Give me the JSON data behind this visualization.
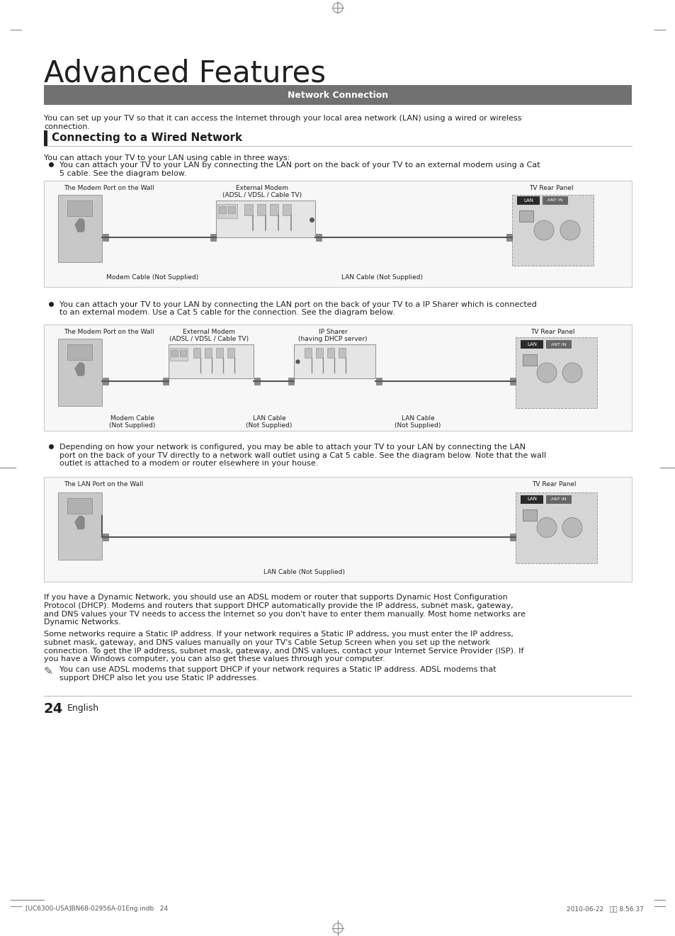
{
  "title": "Advanced Features",
  "section_header": "Network Connection",
  "section_header_bg": "#6b6b6b",
  "section_header_color": "#ffffff",
  "subsection_title": "Connecting to a Wired Network",
  "page_bg": "#ffffff",
  "text_color": "#231f20",
  "body_text_1": "You can set up your TV so that it can access the Internet through your local area network (LAN) using a wired or wireless\nconnection.",
  "bullet_intro": "You can attach your TV to your LAN using cable in three ways:",
  "bullet1_line1": "You can attach your TV to your LAN by connecting the LAN port on the back of your TV to an external modem using a Cat",
  "bullet1_line2": "5 cable. See the diagram below.",
  "bullet2_line1": "You can attach your TV to your LAN by connecting the LAN port on the back of your TV to a IP Sharer which is connected",
  "bullet2_line2": "to an external modem. Use a Cat 5 cable for the connection. See the diagram below.",
  "bullet3_line1": "Depending on how your network is configured, you may be able to attach your TV to your LAN by connecting the LAN",
  "bullet3_line2": "port on the back of your TV directly to a network wall outlet using a Cat 5 cable. See the diagram below. Note that the wall",
  "bullet3_line3": "outlet is attached to a modem or router elsewhere in your house.",
  "para1_line1": "If you have a Dynamic Network, you should use an ADSL modem or router that supports Dynamic Host Configuration",
  "para1_line2": "Protocol (DHCP). Modems and routers that support DHCP automatically provide the IP address, subnet mask, gateway,",
  "para1_line3": "and DNS values your TV needs to access the Internet so you don't have to enter them manually. Most home networks are",
  "para1_line4": "Dynamic Networks.",
  "para2_line1": "Some networks require a Static IP address. If your network requires a Static IP address, you must enter the IP address,",
  "para2_line2": "subnet mask, gateway, and DNS values manually on your TV's Cable Setup Screen when you set up the network",
  "para2_line3": "connection. To get the IP address, subnet mask, gateway, and DNS values, contact your Internet Service Provider (ISP). If",
  "para2_line4": "you have a Windows computer, you can also get these values through your computer.",
  "note_line1": "You can use ADSL modems that support DHCP if your network requires a Static IP address. ADSL modems that",
  "note_line2": "support DHCP also let you use Static IP addresses.",
  "page_number": "24",
  "footer_text": "English",
  "footer_file": "[UC6300-USA]BN68-02956A-01Eng.indb   24",
  "footer_date": "2010-06-22   오전 8:56:37",
  "diag1_wall_label": "The Modem Port on the Wall",
  "diag1_modem_label1": "External Modem",
  "diag1_modem_label2": "(ADSL / VDSL / Cable TV)",
  "diag1_modem_cable": "Modem Cable (Not Supplied)",
  "diag1_lan_cable": "LAN Cable (Not Supplied)",
  "diag1_tv_label": "TV Rear Panel",
  "diag2_wall_label": "The Modem Port on the Wall",
  "diag2_modem_label1": "External Modem",
  "diag2_modem_label2": "(ADSL / VDSL / Cable TV)",
  "diag2_sharer_label1": "IP Sharer",
  "diag2_sharer_label2": "(having DHCP server)",
  "diag2_modem_cable": "Modem Cable",
  "diag2_modem_cable2": "(Not Supplied)",
  "diag2_lan1": "LAN Cable",
  "diag2_lan1b": "(Not Supplied)",
  "diag2_lan2": "LAN Cable",
  "diag2_lan2b": "(Not Supplied)",
  "diag2_tv_label": "TV Rear Panel",
  "diag3_wall_label": "The LAN Port on the Wall",
  "diag3_lan_cable": "LAN Cable (Not Supplied)",
  "diag3_tv_label": "TV Rear Panel"
}
